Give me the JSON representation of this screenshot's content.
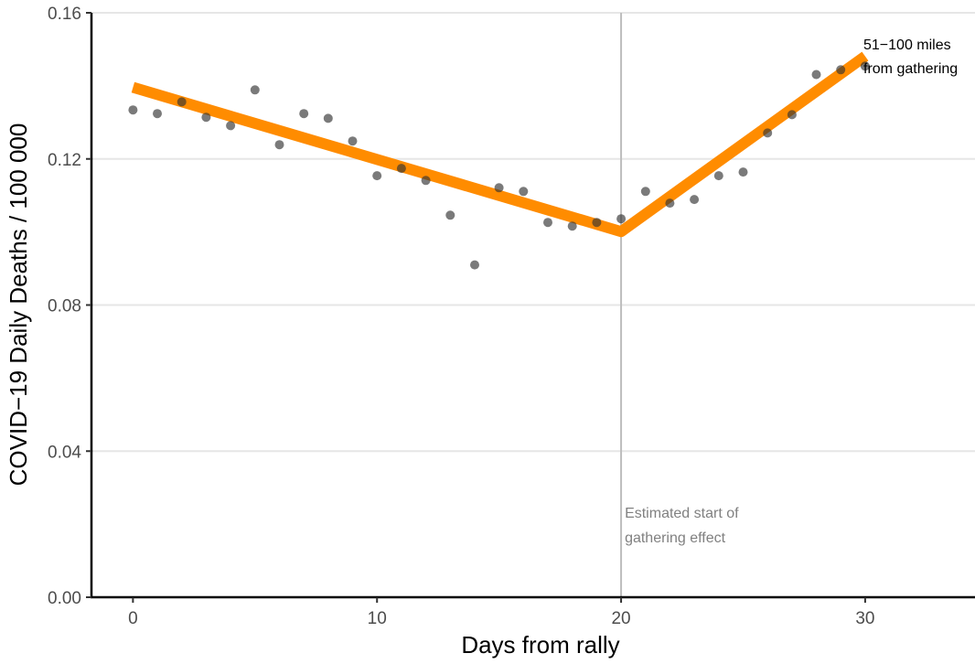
{
  "chart_data": {
    "type": "scatter",
    "xlabel": "Days from rally",
    "ylabel": "COVID−19 Daily Deaths / 100 000",
    "xlim": [
      -1.7,
      34.5
    ],
    "ylim": [
      0,
      0.16
    ],
    "x_ticks": [
      0,
      10,
      20,
      30
    ],
    "x_tick_labels": [
      "0",
      "10",
      "20",
      "30"
    ],
    "y_ticks": [
      0,
      0.04,
      0.08,
      0.12,
      0.16
    ],
    "y_tick_labels": [
      "0.00",
      "0.04",
      "0.08",
      "0.12",
      "0.16"
    ],
    "grid": "horizontal",
    "points": {
      "x": [
        0,
        1,
        2,
        3,
        4,
        5,
        6,
        7,
        8,
        9,
        10,
        11,
        12,
        13,
        14,
        15,
        16,
        17,
        18,
        19,
        20,
        21,
        22,
        23,
        24,
        25,
        26,
        27,
        28,
        29,
        30
      ],
      "y": [
        0.1334,
        0.1324,
        0.1356,
        0.1314,
        0.1291,
        0.1389,
        0.1239,
        0.1324,
        0.1311,
        0.1249,
        0.1154,
        0.1174,
        0.1141,
        0.1046,
        0.091,
        0.1121,
        0.1111,
        0.1026,
        0.1016,
        0.1026,
        0.1036,
        0.1111,
        0.1079,
        0.1089,
        0.1154,
        0.1164,
        0.1271,
        0.1321,
        0.1431,
        0.1444,
        0.1454
      ],
      "color": "#333333"
    },
    "fit_line": {
      "x": [
        0,
        20,
        30
      ],
      "y": [
        0.1396,
        0.1001,
        0.1481
      ],
      "color": "#FF8C00"
    },
    "vline": {
      "x": 20,
      "color": "#bdbdbd",
      "label_lines": [
        "Estimated start of",
        "gathering effect"
      ],
      "label_color": "#808080"
    },
    "series_label": {
      "lines": [
        "51−100 miles",
        "from gathering"
      ],
      "color": "#000000"
    }
  }
}
